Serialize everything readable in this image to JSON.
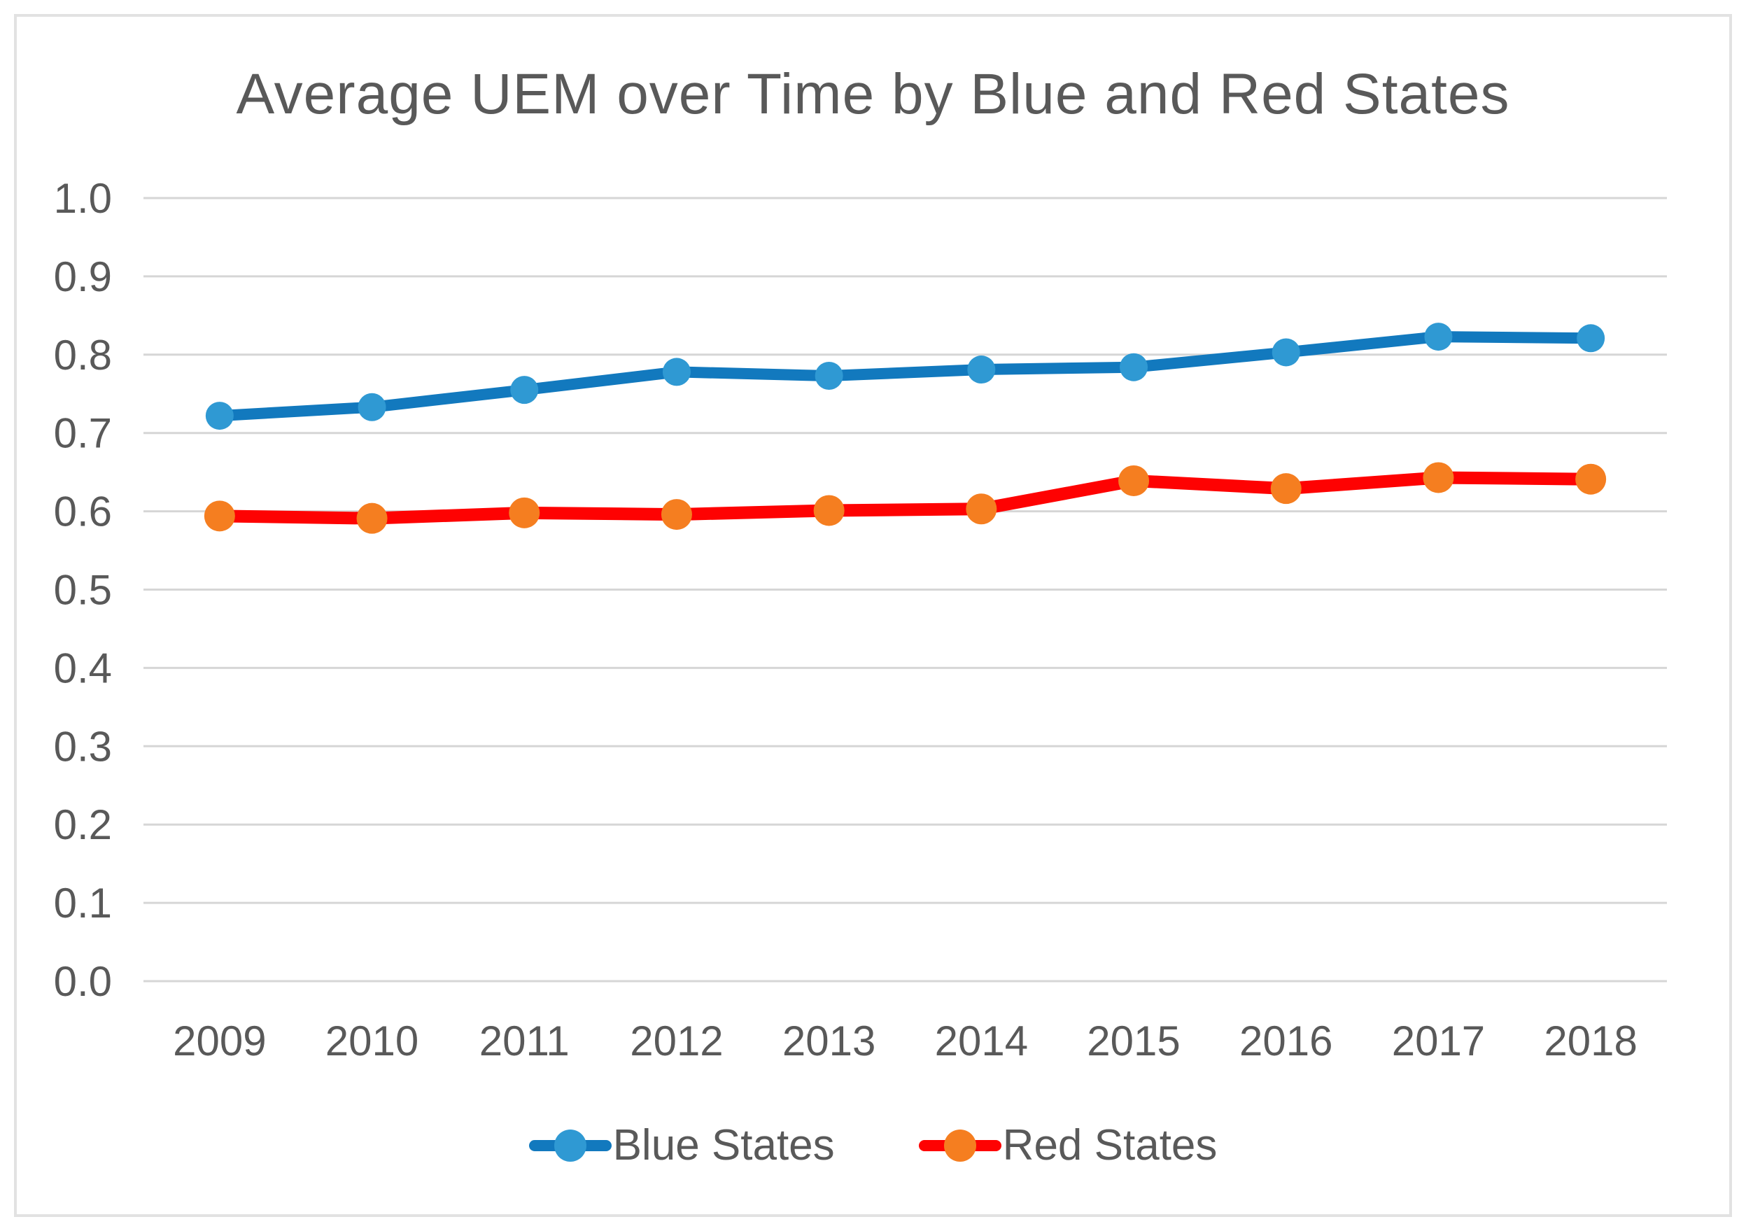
{
  "chart_data": {
    "type": "line",
    "title": "Average UEM over Time by Blue and Red States",
    "categories": [
      "2009",
      "2010",
      "2011",
      "2012",
      "2013",
      "2014",
      "2015",
      "2016",
      "2017",
      "2018"
    ],
    "series": [
      {
        "name": "Blue States",
        "values": [
          0.722,
          0.733,
          0.755,
          0.778,
          0.773,
          0.781,
          0.784,
          0.803,
          0.823,
          0.821
        ],
        "line_color": "#1279be",
        "marker_color": "#2f99d3"
      },
      {
        "name": "Red States",
        "values": [
          0.594,
          0.591,
          0.598,
          0.596,
          0.601,
          0.603,
          0.639,
          0.629,
          0.643,
          0.641
        ],
        "line_color": "#fe0202",
        "marker_color": "#f57e20"
      }
    ],
    "xlabel": "",
    "ylabel": "",
    "ylim": [
      0.0,
      1.0
    ],
    "ytick_step": 0.1,
    "ytick_labels": [
      "0.0",
      "0.1",
      "0.2",
      "0.3",
      "0.4",
      "0.5",
      "0.6",
      "0.7",
      "0.8",
      "0.9",
      "1.0"
    ],
    "grid": "horizontal",
    "legend_position": "bottom"
  },
  "colors": {
    "gridline": "#d6d6d6",
    "tick_text": "#595959",
    "title_text": "#595959",
    "legend_text": "#595959",
    "frame_border": "#e2e2e2",
    "background": "#ffffff"
  }
}
